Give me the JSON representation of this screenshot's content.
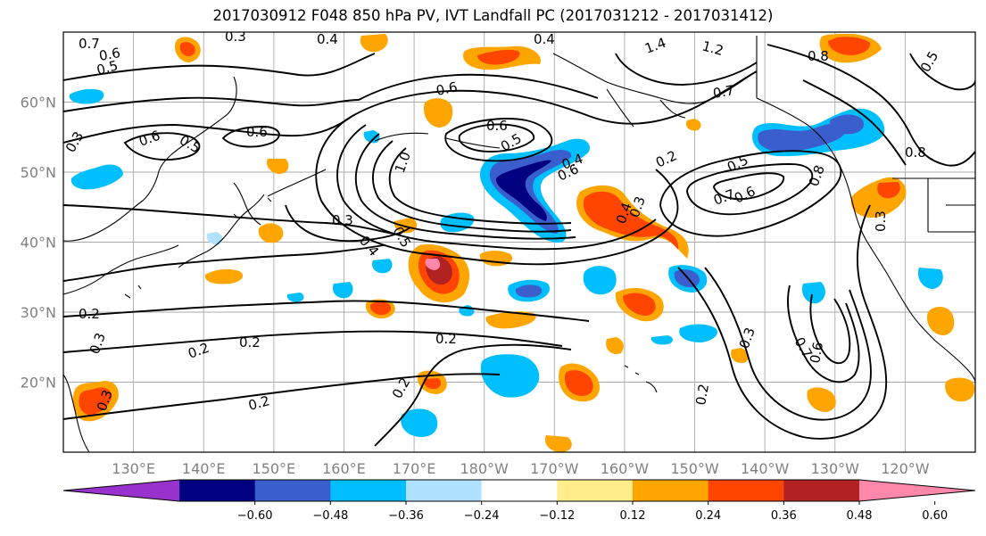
{
  "title": "2017030912 F048 850 hPa PV, IVT Landfall PC (2017031212 - 2017031412)",
  "map": {
    "projection": "PlateCarree",
    "lon_range": [
      120,
      250
    ],
    "lat_range": [
      10,
      70
    ],
    "lon_ticks": [
      "130°E",
      "140°E",
      "150°E",
      "160°E",
      "170°E",
      "180°W",
      "170°W",
      "160°W",
      "150°W",
      "140°W",
      "130°W",
      "120°W"
    ],
    "lat_ticks": [
      "20°N",
      "30°N",
      "40°N",
      "50°N",
      "60°N"
    ],
    "gridlines": true
  },
  "colorbar": {
    "colors": [
      "#9932cc",
      "#000080",
      "#3a5fcd",
      "#00bfff",
      "#b0e2ff",
      "#ffffff",
      "#ffec8b",
      "#ffa500",
      "#ff4500",
      "#b22222",
      "#ff88aa"
    ],
    "ticks": [
      "−0.60",
      "−0.48",
      "−0.36",
      "−0.24",
      "−0.12",
      "0.12",
      "0.24",
      "0.36",
      "0.48",
      "0.60"
    ],
    "extend": "both"
  },
  "contour_labels": [
    "0.7",
    "0.3",
    "0.4",
    "0.4",
    "1.4",
    "1.2",
    "0.8",
    "0.5",
    "0.5",
    "0.6",
    "0.6",
    "0.6",
    "0.5",
    "0.6",
    "0.7",
    "0.6",
    "0.5",
    "0.6",
    "0.2",
    "0.5",
    "1.0",
    "0.4",
    "0.5",
    "0.4",
    "0.3",
    "0.8",
    "0.3",
    "0.4",
    "0.3",
    "0.7",
    "0.6",
    "0.3",
    "0.2",
    "0.2",
    "0.2",
    "0.2",
    "0.2",
    "0.2",
    "0.3",
    "0.7",
    "0.6",
    "0.3",
    "0.2",
    "0.8",
    "0.3"
  ]
}
